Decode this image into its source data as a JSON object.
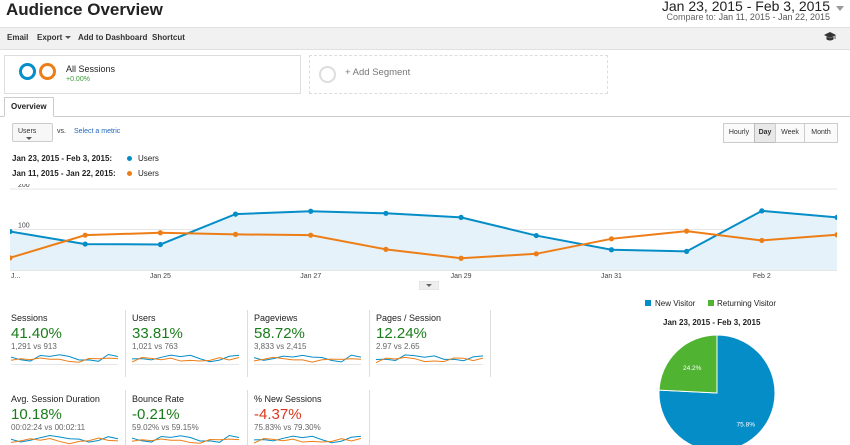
{
  "header": {
    "title": "Audience Overview",
    "date_range": "Jan 23, 2015 - Feb 3, 2015",
    "compare_label": "Compare to:",
    "compare_range": "Jan 11, 2015 - Jan 22, 2015"
  },
  "toolbar": {
    "email": "Email",
    "export": "Export",
    "add_dashboard": "Add to Dashboard",
    "shortcut": "Shortcut"
  },
  "segments": {
    "name": "All Sessions",
    "pct": "+0.00%",
    "add": "+ Add Segment"
  },
  "tabs": {
    "overview": "Overview"
  },
  "controls": {
    "metric": "Users",
    "vs": "vs.",
    "select_metric": "Select a metric",
    "granularity": [
      "Hourly",
      "Day",
      "Week",
      "Month"
    ],
    "active": "Day"
  },
  "legend": {
    "range1": "Jan 23, 2015 - Feb 3, 2015:",
    "range2": "Jan 11, 2015 - Jan 22, 2015:",
    "series": "Users"
  },
  "colors": {
    "blue": "#058dc7",
    "orange": "#ed7e17",
    "green": "#50b432",
    "red": "#d9381e",
    "fill": "#e5f2f9"
  },
  "chart_data": {
    "type": "line",
    "ylim": [
      0,
      200
    ],
    "yticks": [
      "200",
      "100"
    ],
    "x": [
      "Jan 23",
      "Jan 24",
      "Jan 25",
      "Jan 26",
      "Jan 27",
      "Jan 28",
      "Jan 29",
      "Jan 30",
      "Jan 31",
      "Feb 1",
      "Feb 2",
      "Feb 3"
    ],
    "xtick_labels": [
      {
        "index": 0,
        "label": "J..."
      },
      {
        "index": 2,
        "label": "Jan 25"
      },
      {
        "index": 4,
        "label": "Jan 27"
      },
      {
        "index": 6,
        "label": "Jan 29"
      },
      {
        "index": 8,
        "label": "Jan 31"
      },
      {
        "index": 10,
        "label": "Feb 2"
      }
    ],
    "series": [
      {
        "name": "Users",
        "period": "Jan 23, 2015 - Feb 3, 2015",
        "color": "#058dc7",
        "values": [
          95,
          64,
          63,
          138,
          145,
          140,
          130,
          85,
          50,
          46,
          146,
          130
        ]
      },
      {
        "name": "Users",
        "period": "Jan 11, 2015 - Jan 22, 2015",
        "color": "#ed7e17",
        "values": [
          30,
          86,
          92,
          88,
          86,
          51,
          29,
          40,
          77,
          96,
          73,
          87
        ]
      }
    ]
  },
  "scorecards": [
    {
      "label": "Sessions",
      "value": "41.40%",
      "sub": "1,291 vs 913",
      "negative": false
    },
    {
      "label": "Users",
      "value": "33.81%",
      "sub": "1,021 vs 763",
      "negative": false
    },
    {
      "label": "Pageviews",
      "value": "58.72%",
      "sub": "3,833 vs 2,415",
      "negative": false
    },
    {
      "label": "Pages / Session",
      "value": "12.24%",
      "sub": "2.97 vs 2.65",
      "negative": false
    },
    {
      "label": "Avg. Session Duration",
      "value": "10.18%",
      "sub": "00:02:24 vs 00:02:11",
      "negative": false
    },
    {
      "label": "Bounce Rate",
      "value": "-0.21%",
      "sub": "59.02% vs 59.15%",
      "negative": false
    },
    {
      "label": "% New Sessions",
      "value": "-4.37%",
      "sub": "75.83% vs 79.30%",
      "negative": true
    }
  ],
  "pie": {
    "legend": [
      "New Visitor",
      "Returning Visitor"
    ],
    "title": "Jan 23, 2015 - Feb 3, 2015",
    "chart_data": {
      "type": "pie",
      "labels": [
        "New Visitor",
        "Returning Visitor"
      ],
      "values": [
        75.8,
        24.2
      ],
      "value_labels": [
        "75.8%",
        "24.2%"
      ],
      "colors": [
        "#058dc7",
        "#50b432"
      ]
    }
  }
}
